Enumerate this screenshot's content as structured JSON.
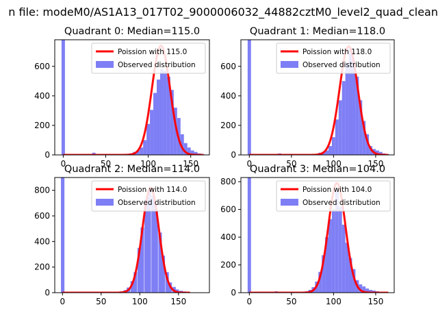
{
  "page": {
    "suptitle": "n file: modeM0/AS1A13_017T02_9000006032_44882cztM0_level2_quad_clean"
  },
  "colors": {
    "observed": "#7f7ff5",
    "poisson": "#ff0000",
    "axis": "#000000"
  },
  "chart_data": [
    {
      "type": "bar",
      "title": "Quadrant 0: Median=115.0",
      "xlim": [
        -10,
        172
      ],
      "ylim": [
        0,
        780
      ],
      "xticks": [
        0,
        50,
        100,
        150
      ],
      "yticks": [
        0,
        200,
        400,
        600
      ],
      "bin_width": 4,
      "bins": [
        [
          -2,
          780
        ],
        [
          34,
          15
        ],
        [
          78,
          10
        ],
        [
          82,
          20
        ],
        [
          86,
          30
        ],
        [
          90,
          50
        ],
        [
          94,
          100
        ],
        [
          98,
          210
        ],
        [
          102,
          305
        ],
        [
          106,
          420
        ],
        [
          110,
          510
        ],
        [
          114,
          580
        ],
        [
          118,
          570
        ],
        [
          122,
          530
        ],
        [
          126,
          440
        ],
        [
          130,
          320
        ],
        [
          134,
          250
        ],
        [
          138,
          140
        ],
        [
          142,
          80
        ],
        [
          146,
          50
        ],
        [
          150,
          30
        ],
        [
          154,
          20
        ],
        [
          158,
          10
        ],
        [
          162,
          5
        ]
      ],
      "poisson_mean": 115.0,
      "poisson_amp": 740,
      "poisson_sigma": 10.7,
      "legend": [
        "Poission with 115.0",
        "Observed distribution"
      ]
    },
    {
      "type": "bar",
      "title": "Quadrant 1: Median=118.0",
      "xlim": [
        -10,
        172
      ],
      "ylim": [
        0,
        780
      ],
      "xticks": [
        0,
        50,
        100,
        150
      ],
      "yticks": [
        0,
        200,
        400,
        600
      ],
      "bin_width": 4,
      "bins": [
        [
          -2,
          780
        ],
        [
          34,
          10
        ],
        [
          82,
          15
        ],
        [
          86,
          20
        ],
        [
          90,
          30
        ],
        [
          94,
          60
        ],
        [
          98,
          120
        ],
        [
          102,
          240
        ],
        [
          106,
          370
        ],
        [
          110,
          500
        ],
        [
          114,
          620
        ],
        [
          118,
          720
        ],
        [
          122,
          640
        ],
        [
          126,
          530
        ],
        [
          130,
          370
        ],
        [
          134,
          230
        ],
        [
          138,
          140
        ],
        [
          142,
          60
        ],
        [
          146,
          40
        ],
        [
          150,
          30
        ],
        [
          154,
          20
        ],
        [
          158,
          10
        ],
        [
          162,
          5
        ]
      ],
      "poisson_mean": 118.0,
      "poisson_amp": 735,
      "poisson_sigma": 10.9,
      "legend": [
        "Poission with 118.0",
        "Observed distribution"
      ]
    },
    {
      "type": "bar",
      "title": "Quadrant 2: Median=114.0",
      "xlim": [
        -10,
        190
      ],
      "ylim": [
        0,
        900
      ],
      "xticks": [
        0,
        50,
        100,
        150
      ],
      "yticks": [
        0,
        200,
        400,
        600,
        800
      ],
      "bin_width": 4.5,
      "bins": [
        [
          -2,
          900
        ],
        [
          74,
          10
        ],
        [
          79,
          20
        ],
        [
          83,
          40
        ],
        [
          88,
          90
        ],
        [
          92,
          160
        ],
        [
          97,
          350
        ],
        [
          101,
          510
        ],
        [
          106,
          720
        ],
        [
          110,
          810
        ],
        [
          115,
          760
        ],
        [
          119,
          640
        ],
        [
          124,
          470
        ],
        [
          128,
          290
        ],
        [
          133,
          160
        ],
        [
          137,
          80
        ],
        [
          142,
          45
        ],
        [
          146,
          25
        ],
        [
          151,
          15
        ],
        [
          155,
          10
        ],
        [
          160,
          5
        ]
      ],
      "poisson_mean": 114.0,
      "poisson_amp": 820,
      "poisson_sigma": 10.7,
      "legend": [
        "Poission with 114.0",
        "Observed distribution"
      ]
    },
    {
      "type": "bar",
      "title": "Quadrant 3: Median=104.0",
      "xlim": [
        -10,
        172
      ],
      "ylim": [
        0,
        830
      ],
      "xticks": [
        0,
        50,
        100,
        150
      ],
      "yticks": [
        0,
        200,
        400,
        600,
        800
      ],
      "bin_width": 4,
      "bins": [
        [
          -2,
          830
        ],
        [
          30,
          10
        ],
        [
          66,
          10
        ],
        [
          70,
          20
        ],
        [
          74,
          40
        ],
        [
          78,
          80
        ],
        [
          82,
          150
        ],
        [
          86,
          270
        ],
        [
          90,
          400
        ],
        [
          94,
          530
        ],
        [
          98,
          600
        ],
        [
          102,
          730
        ],
        [
          106,
          620
        ],
        [
          110,
          490
        ],
        [
          114,
          360
        ],
        [
          118,
          250
        ],
        [
          122,
          170
        ],
        [
          126,
          90
        ],
        [
          130,
          60
        ],
        [
          134,
          45
        ],
        [
          138,
          30
        ],
        [
          142,
          20
        ],
        [
          146,
          15
        ],
        [
          150,
          10
        ],
        [
          154,
          5
        ]
      ],
      "poisson_mean": 104.0,
      "poisson_amp": 790,
      "poisson_sigma": 10.2,
      "legend": [
        "Poission with 104.0",
        "Observed distribution"
      ]
    }
  ]
}
